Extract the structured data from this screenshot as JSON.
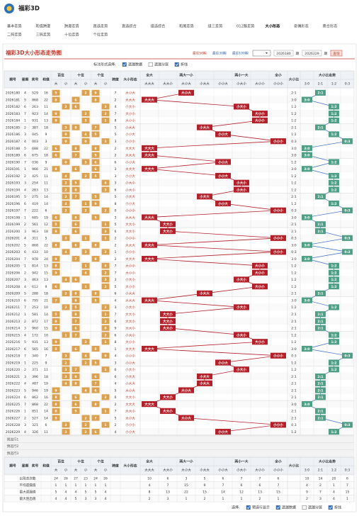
{
  "header": {
    "logo": "福彩3D",
    "nav": [
      "基本走势",
      "和值跨度",
      "跨度走势",
      "直选走势",
      "直选综合",
      "组选综合",
      "和尾走势",
      "组三走势",
      "012路走势",
      "大小形态",
      "奇偶形态",
      "质合形态",
      "二码走势",
      "三码走势",
      "十位走势",
      "个位走势"
    ],
    "nav_active": 9
  },
  "panel": {
    "title": "福彩3D大小形态走势图",
    "quick": [
      "最近50期",
      "最近30期",
      "最近100期"
    ],
    "from": "2026180",
    "to": "2026229",
    "period": "期",
    "query": "查询"
  },
  "options": {
    "label": "标注形式选择:",
    "items": [
      {
        "text": "遗漏数据",
        "checked": true
      },
      {
        "text": "遗漏分层",
        "checked": false
      },
      {
        "text": "折线",
        "checked": true
      }
    ]
  },
  "table": {
    "columns": {
      "id": "期号",
      "week": "星期",
      "num": "奖号",
      "sum": "和值",
      "positions": [
        "百位",
        "十位",
        "个位"
      ],
      "big": "大",
      "small": "小",
      "span": "跨度",
      "shape": "大小形态",
      "groups": [
        {
          "name": "全大",
          "items": [
            "大大大"
          ]
        },
        {
          "name": "两大一小",
          "items": [
            "大大小",
            "大小大",
            "小大大"
          ]
        },
        {
          "name": "两小一大",
          "items": [
            "小小大",
            "小大小",
            "大小小"
          ]
        },
        {
          "name": "全小",
          "items": [
            "小小小"
          ]
        }
      ],
      "ratio": "大小比",
      "trend": "大小比走势",
      "trend_items": [
        "3:0",
        "2:1",
        "1:2",
        "0:3"
      ]
    },
    "rows": [
      [
        "2026180",
        4,
        "529",
        16,
        [
          5,
          2,
          9
        ],
        7,
        "大小大",
        "2:1"
      ],
      [
        "2026181",
        5,
        "868",
        22,
        [
          8,
          6,
          8
        ],
        2,
        "大大大",
        "3:0"
      ],
      [
        "2026182",
        6,
        "263",
        11,
        [
          2,
          6,
          3
        ],
        4,
        "小大小",
        "1:2"
      ],
      [
        "2026183",
        7,
        "923",
        14,
        [
          9,
          2,
          3
        ],
        7,
        "大小小",
        "1:2"
      ],
      [
        "2026184",
        1,
        "931",
        13,
        [
          9,
          3,
          1
        ],
        8,
        "大小小",
        "1:2"
      ],
      [
        "2026185",
        2,
        "387",
        18,
        [
          3,
          8,
          7
        ],
        5,
        "小大大",
        "2:1"
      ],
      [
        "2026186",
        3,
        "045",
        9,
        [
          0,
          4,
          5
        ],
        5,
        "小小大",
        "1:2"
      ],
      [
        "2026187",
        4,
        "003",
        3,
        [
          0,
          0,
          3
        ],
        3,
        "小小小",
        "0:3"
      ],
      [
        "2026188",
        5,
        "688",
        22,
        [
          6,
          8,
          8
        ],
        2,
        "大大大",
        "3:0"
      ],
      [
        "2026189",
        6,
        "675",
        18,
        [
          6,
          7,
          5
        ],
        2,
        "大大大",
        "3:0"
      ],
      [
        "2026190",
        7,
        "036",
        9,
        [
          0,
          3,
          6
        ],
        6,
        "小小大",
        "1:2"
      ],
      [
        "2026191",
        1,
        "966",
        21,
        [
          9,
          6,
          6
        ],
        3,
        "大大大",
        "3:0"
      ],
      [
        "2026192",
        2,
        "425",
        11,
        [
          4,
          2,
          5
        ],
        3,
        "小小大",
        "1:2"
      ],
      [
        "2026193",
        3,
        "254",
        11,
        [
          2,
          5,
          4
        ],
        3,
        "小大小",
        "1:2"
      ],
      [
        "2026194",
        4,
        "283",
        13,
        [
          2,
          8,
          3
        ],
        6,
        "小大小",
        "1:2"
      ],
      [
        "2026195",
        5,
        "275",
        14,
        [
          2,
          7,
          5
        ],
        5,
        "小大大",
        "2:1"
      ],
      [
        "2026196",
        6,
        "419",
        14,
        [
          4,
          1,
          9
        ],
        8,
        "小小大",
        "1:2"
      ],
      [
        "2026197",
        7,
        "222",
        6,
        [
          2,
          2,
          2
        ],
        0,
        "小小小",
        "0:3"
      ],
      [
        "2026198",
        1,
        "685",
        19,
        [
          6,
          8,
          5
        ],
        3,
        "大大大",
        "3:0"
      ],
      [
        "2026199",
        2,
        "561",
        12,
        [
          5,
          6,
          1
        ],
        5,
        "大大小",
        "2:1"
      ],
      [
        "2026200",
        3,
        "963",
        18,
        [
          9,
          6,
          3
        ],
        6,
        "大大小",
        "2:1"
      ],
      [
        "2026201",
        4,
        "311",
        5,
        [
          3,
          1,
          1
        ],
        2,
        "小小小",
        "0:3"
      ],
      [
        "2026202",
        5,
        "868",
        22,
        [
          8,
          6,
          8
        ],
        2,
        "大大大",
        "3:0"
      ],
      [
        "2026203",
        6,
        "433",
        10,
        [
          4,
          3,
          3
        ],
        1,
        "小小小",
        "0:3"
      ],
      [
        "2026204",
        7,
        "978",
        24,
        [
          9,
          7,
          8
        ],
        2,
        "大大大",
        "3:0"
      ],
      [
        "2026205",
        1,
        "814",
        13,
        [
          8,
          1,
          4
        ],
        7,
        "大小小",
        "1:2"
      ],
      [
        "2026206",
        2,
        "942",
        15,
        [
          9,
          4,
          2
        ],
        7,
        "大小小",
        "1:2"
      ],
      [
        "2026207",
        3,
        "463",
        13,
        [
          4,
          6,
          3
        ],
        3,
        "小大小",
        "1:2"
      ],
      [
        "2026208",
        4,
        "612",
        9,
        [
          6,
          1,
          2
        ],
        5,
        "大小小",
        "1:2"
      ],
      [
        "2026209",
        5,
        "288",
        18,
        [
          2,
          8,
          8
        ],
        6,
        "小大大",
        "2:1"
      ],
      [
        "2026210",
        6,
        "795",
        21,
        [
          7,
          9,
          5
        ],
        4,
        "大大大",
        "3:0"
      ],
      [
        "2026211",
        7,
        "253",
        10,
        [
          2,
          5,
          3
        ],
        3,
        "小大小",
        "1:2"
      ],
      [
        "2026212",
        1,
        "581",
        14,
        [
          5,
          8,
          1
        ],
        7,
        "大大小",
        "2:1"
      ],
      [
        "2026213",
        2,
        "872",
        17,
        [
          8,
          7,
          2
        ],
        6,
        "大大小",
        "2:1"
      ],
      [
        "2026214",
        3,
        "960",
        15,
        [
          9,
          6,
          0
        ],
        9,
        "大大小",
        "2:1"
      ],
      [
        "2026215",
        4,
        "172",
        10,
        [
          1,
          7,
          2
        ],
        6,
        "小大小",
        "1:2"
      ],
      [
        "2026216",
        5,
        "931",
        13,
        [
          9,
          3,
          1
        ],
        8,
        "大小小",
        "1:2"
      ],
      [
        "2026217",
        6,
        "565",
        16,
        [
          5,
          6,
          5
        ],
        1,
        "大大大",
        "3:0"
      ],
      [
        "2026218",
        7,
        "340",
        7,
        [
          3,
          4,
          0
        ],
        4,
        "小小小",
        "0:3"
      ],
      [
        "2026219",
        1,
        "225",
        9,
        [
          2,
          2,
          5
        ],
        3,
        "小小大",
        "1:2"
      ],
      [
        "2026220",
        2,
        "371",
        11,
        [
          3,
          7,
          1
        ],
        6,
        "小大小",
        "1:2"
      ],
      [
        "2026221",
        3,
        "396",
        18,
        [
          3,
          9,
          6
        ],
        6,
        "小大大",
        "2:1"
      ],
      [
        "2026222",
        4,
        "487",
        19,
        [
          4,
          8,
          7
        ],
        4,
        "小大大",
        "2:1"
      ],
      [
        "2026223",
        5,
        "946",
        19,
        [
          9,
          4,
          6
        ],
        5,
        "大小大",
        "2:1"
      ],
      [
        "2026224",
        6,
        "862",
        16,
        [
          8,
          6,
          2
        ],
        6,
        "大大小",
        "2:1"
      ],
      [
        "2026225",
        7,
        "868",
        22,
        [
          8,
          6,
          8
        ],
        2,
        "大大大",
        "3:0"
      ],
      [
        "2026226",
        1,
        "851",
        14,
        [
          8,
          5,
          1
        ],
        7,
        "大大小",
        "2:1"
      ],
      [
        "2026227",
        2,
        "527",
        14,
        [
          5,
          2,
          7
        ],
        5,
        "大小大",
        "2:1"
      ],
      [
        "2026228",
        3,
        "321",
        6,
        [
          3,
          2,
          1
        ],
        2,
        "小小小",
        "0:3"
      ],
      [
        "2026229",
        4,
        "326",
        11,
        [
          3,
          2,
          6
        ],
        4,
        "小小大",
        "1:2"
      ]
    ],
    "preset_rows": [
      "预选行1",
      "预选行2",
      "预选行3"
    ],
    "stats": [
      {
        "label": "出现总次数",
        "values": [
          24,
          26,
          27,
          23,
          24,
          26,
          10,
          6,
          3,
          5,
          6,
          7,
          7,
          6,
          10,
          14,
          20,
          6
        ]
      },
      {
        "label": "平均遗漏值",
        "values": [
          1,
          1,
          1,
          1,
          1,
          1,
          4,
          7,
          15,
          9,
          7,
          6,
          6,
          7,
          4,
          2,
          1,
          7
        ]
      },
      {
        "label": "最大遗漏值",
        "values": [
          5,
          4,
          4,
          5,
          5,
          4,
          8,
          13,
          22,
          15,
          14,
          12,
          13,
          15,
          9,
          7,
          4,
          15
        ]
      },
      {
        "label": "最大连出值",
        "values": [
          4,
          4,
          5,
          3,
          3,
          4,
          2,
          3,
          1,
          2,
          1,
          1,
          2,
          1,
          2,
          3,
          4,
          1
        ]
      }
    ]
  },
  "footer": {
    "label": "选择:",
    "items": [
      {
        "text": "预选行显示",
        "checked": true
      },
      {
        "text": "遗漏数据",
        "checked": true
      },
      {
        "text": "遗漏分层",
        "checked": false
      },
      {
        "text": "折线",
        "checked": true
      }
    ]
  }
}
